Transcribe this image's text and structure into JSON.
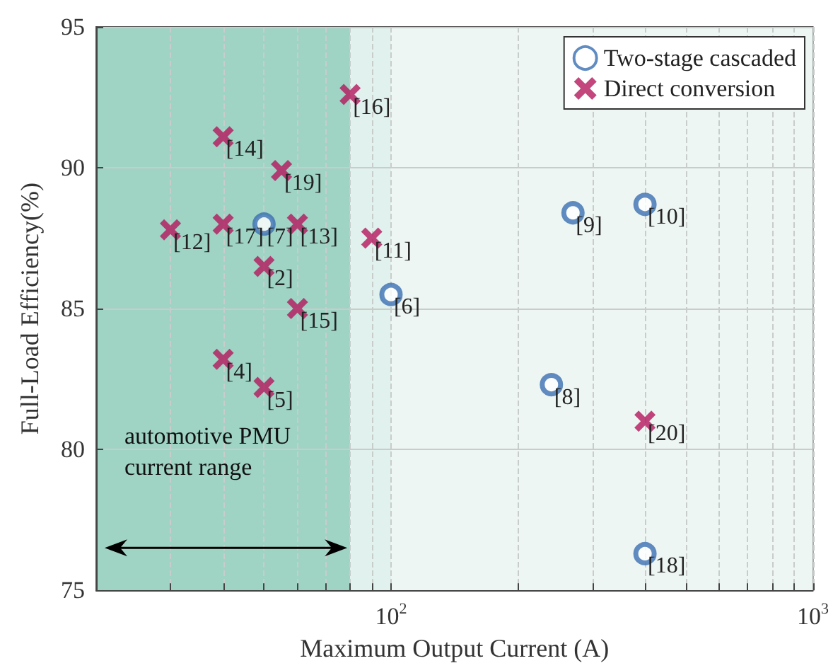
{
  "chart_data": {
    "type": "scatter",
    "xlabel": "Maximum Output Current (A)",
    "ylabel": "Full-Load Efficiency(%)",
    "log": "x",
    "xlim": [
      20,
      1000
    ],
    "ylim": [
      75,
      95
    ],
    "xticks": [
      {
        "value": 20,
        "label": null
      },
      {
        "value": 30,
        "label": null
      },
      {
        "value": 40,
        "label": null
      },
      {
        "value": 50,
        "label": null
      },
      {
        "value": 60,
        "label": null
      },
      {
        "value": 70,
        "label": null
      },
      {
        "value": 80,
        "label": null
      },
      {
        "value": 90,
        "label": null
      },
      {
        "value": 100,
        "label": "10$^{2}$"
      },
      {
        "value": 200,
        "label": null
      },
      {
        "value": 300,
        "label": null
      },
      {
        "value": 400,
        "label": null
      },
      {
        "value": 500,
        "label": null
      },
      {
        "value": 600,
        "label": null
      },
      {
        "value": 700,
        "label": null
      },
      {
        "value": 800,
        "label": null
      },
      {
        "value": 900,
        "label": null
      },
      {
        "value": 1000,
        "label": "10$^{3}$"
      }
    ],
    "yticks": [
      75,
      80,
      85,
      90,
      95
    ],
    "grid": true,
    "legend": "top right",
    "bands": [
      {
        "axis": "x",
        "from": 20,
        "to": 80,
        "label": "automotive PMU current range",
        "color": "#9fd3c4"
      },
      {
        "axis": "x",
        "from": 80,
        "to": 100,
        "color": "#e1f1ed"
      },
      {
        "axis": "x",
        "from": 100,
        "to": 1000,
        "color": "#eef6f3"
      }
    ],
    "series": [
      {
        "name": "Two-stage cascaded",
        "color": "#3a6fb2",
        "marker": "circle",
        "x": [
          50,
          100,
          270,
          400,
          240,
          400
        ],
        "values": [
          88.0,
          85.5,
          88.4,
          88.7,
          82.3,
          76.3
        ]
      },
      {
        "name": "Direct conversion",
        "color": "#b4185c",
        "marker": "cross",
        "x": [
          80,
          40,
          55,
          30,
          40,
          60,
          90,
          50,
          60,
          40,
          50,
          400
        ],
        "values": [
          92.6,
          91.1,
          89.9,
          87.8,
          88.0,
          88.0,
          87.5,
          86.5,
          85.0,
          83.2,
          82.2,
          81.0
        ]
      }
    ],
    "annotations": [
      {
        "text": "[7]",
        "x": 50,
        "y": 88.0
      },
      {
        "text": "[6]",
        "x": 100,
        "y": 85.5
      },
      {
        "text": "[9]",
        "x": 270,
        "y": 88.4
      },
      {
        "text": "[10]",
        "x": 400,
        "y": 88.7
      },
      {
        "text": "[8]",
        "x": 240,
        "y": 82.3
      },
      {
        "text": "[18]",
        "x": 400,
        "y": 76.3
      },
      {
        "text": "[16]",
        "x": 80,
        "y": 92.6
      },
      {
        "text": "[14]",
        "x": 40,
        "y": 91.1
      },
      {
        "text": "[19]",
        "x": 55,
        "y": 89.9
      },
      {
        "text": "[12]",
        "x": 30,
        "y": 87.8
      },
      {
        "text": "[17]",
        "x": 40,
        "y": 88.0
      },
      {
        "text": "[13]",
        "x": 60,
        "y": 88.0
      },
      {
        "text": "[11]",
        "x": 90,
        "y": 87.5
      },
      {
        "text": "[2]",
        "x": 50,
        "y": 86.5
      },
      {
        "text": "[15]",
        "x": 60,
        "y": 85.0
      },
      {
        "text": "[4]",
        "x": 40,
        "y": 83.2
      },
      {
        "text": "[5]",
        "x": 50,
        "y": 82.2
      },
      {
        "text": "[20]",
        "x": 400,
        "y": 81.0
      }
    ]
  }
}
